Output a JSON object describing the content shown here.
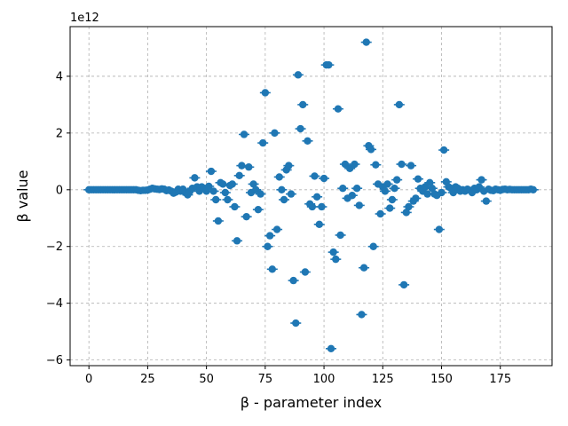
{
  "chart_data": {
    "type": "scatter",
    "title": "",
    "xlabel": "β - parameter index",
    "ylabel": "β value",
    "y_offset_label": "1e12",
    "xlim": [
      -8,
      197
    ],
    "ylim": [
      -6.2,
      5.75
    ],
    "x_ticks": [
      0,
      25,
      50,
      75,
      100,
      125,
      150,
      175
    ],
    "y_ticks": [
      -6,
      -4,
      -2,
      0,
      2,
      4
    ],
    "grid": true,
    "marker_color": "#1f77b4",
    "y_units_scale": 1000000000000.0,
    "points": [
      [
        0,
        0
      ],
      [
        1,
        0
      ],
      [
        2,
        0
      ],
      [
        3,
        0
      ],
      [
        4,
        0
      ],
      [
        5,
        0
      ],
      [
        6,
        0
      ],
      [
        7,
        0
      ],
      [
        8,
        0
      ],
      [
        9,
        0
      ],
      [
        10,
        0
      ],
      [
        11,
        0
      ],
      [
        12,
        0
      ],
      [
        13,
        0
      ],
      [
        14,
        0
      ],
      [
        15,
        0
      ],
      [
        16,
        0
      ],
      [
        17,
        0
      ],
      [
        18,
        0
      ],
      [
        19,
        0
      ],
      [
        20,
        0
      ],
      [
        21,
        -0.02
      ],
      [
        22,
        -0.03
      ],
      [
        23,
        -0.02
      ],
      [
        24,
        -0.02
      ],
      [
        25,
        -0.01
      ],
      [
        26,
        0.02
      ],
      [
        27,
        0.05
      ],
      [
        28,
        0.03
      ],
      [
        29,
        0.02
      ],
      [
        30,
        0.01
      ],
      [
        31,
        0.03
      ],
      [
        32,
        0.02
      ],
      [
        33,
        -0.03
      ],
      [
        34,
        -0.01
      ],
      [
        35,
        -0.05
      ],
      [
        36,
        -0.12
      ],
      [
        37,
        -0.08
      ],
      [
        38,
        0.02
      ],
      [
        39,
        -0.05
      ],
      [
        40,
        0.02
      ],
      [
        41,
        -0.1
      ],
      [
        42,
        -0.18
      ],
      [
        43,
        -0.05
      ],
      [
        44,
        0.05
      ],
      [
        45,
        0.42
      ],
      [
        46,
        0.1
      ],
      [
        47,
        -0.05
      ],
      [
        48,
        0.1
      ],
      [
        49,
        0.05
      ],
      [
        50,
        -0.05
      ],
      [
        51,
        0.12
      ],
      [
        52,
        0.65
      ],
      [
        53,
        -0.05
      ],
      [
        54,
        -0.35
      ],
      [
        55,
        -1.1
      ],
      [
        56,
        0.25
      ],
      [
        57,
        0.2
      ],
      [
        58,
        -0.1
      ],
      [
        59,
        -0.35
      ],
      [
        60,
        0.15
      ],
      [
        61,
        0.2
      ],
      [
        62,
        -0.6
      ],
      [
        63,
        -1.8
      ],
      [
        64,
        0.5
      ],
      [
        65,
        0.85
      ],
      [
        66,
        1.95
      ],
      [
        67,
        -0.95
      ],
      [
        68,
        0.8
      ],
      [
        69,
        -0.1
      ],
      [
        70,
        0.2
      ],
      [
        71,
        0
      ],
      [
        72,
        -0.7
      ],
      [
        73,
        -0.15
      ],
      [
        74,
        1.65
      ],
      [
        75,
        3.42
      ],
      [
        76,
        -2.0
      ],
      [
        77,
        -1.62
      ],
      [
        78,
        -2.8
      ],
      [
        79,
        2.0
      ],
      [
        80,
        -1.4
      ],
      [
        81,
        0.45
      ],
      [
        82,
        0
      ],
      [
        83,
        -0.35
      ],
      [
        84,
        0.7
      ],
      [
        85,
        0.85
      ],
      [
        86,
        -0.15
      ],
      [
        87,
        -3.2
      ],
      [
        88,
        -4.7
      ],
      [
        89,
        4.05
      ],
      [
        90,
        2.15
      ],
      [
        91,
        3.0
      ],
      [
        92,
        -2.9
      ],
      [
        93,
        1.72
      ],
      [
        94,
        -0.5
      ],
      [
        95,
        -0.6
      ],
      [
        96,
        0.48
      ],
      [
        97,
        -0.25
      ],
      [
        98,
        -1.22
      ],
      [
        99,
        -0.6
      ],
      [
        100,
        0.4
      ],
      [
        101,
        4.4
      ],
      [
        102,
        4.4
      ],
      [
        103,
        -5.6
      ],
      [
        104,
        -2.2
      ],
      [
        105,
        -2.45
      ],
      [
        106,
        2.85
      ],
      [
        107,
        -1.6
      ],
      [
        108,
        0.05
      ],
      [
        109,
        0.9
      ],
      [
        110,
        -0.3
      ],
      [
        111,
        0.75
      ],
      [
        112,
        -0.2
      ],
      [
        113,
        0.9
      ],
      [
        114,
        0.05
      ],
      [
        115,
        -0.55
      ],
      [
        116,
        -4.4
      ],
      [
        117,
        -2.75
      ],
      [
        118,
        5.2
      ],
      [
        119,
        1.55
      ],
      [
        120,
        1.42
      ],
      [
        121,
        -2.0
      ],
      [
        122,
        0.88
      ],
      [
        123,
        0.2
      ],
      [
        124,
        -0.85
      ],
      [
        125,
        0.1
      ],
      [
        126,
        -0.05
      ],
      [
        127,
        0.2
      ],
      [
        128,
        -0.65
      ],
      [
        129,
        -0.35
      ],
      [
        130,
        0.05
      ],
      [
        131,
        0.35
      ],
      [
        132,
        3.0
      ],
      [
        133,
        0.9
      ],
      [
        134,
        -3.35
      ],
      [
        135,
        -0.8
      ],
      [
        136,
        -0.6
      ],
      [
        137,
        0.85
      ],
      [
        138,
        -0.4
      ],
      [
        139,
        -0.3
      ],
      [
        140,
        0.38
      ],
      [
        141,
        0.05
      ],
      [
        142,
        -0.05
      ],
      [
        143,
        0.1
      ],
      [
        144,
        -0.15
      ],
      [
        145,
        0.25
      ],
      [
        146,
        0.05
      ],
      [
        147,
        -0.15
      ],
      [
        148,
        -0.2
      ],
      [
        149,
        -1.4
      ],
      [
        150,
        -0.1
      ],
      [
        151,
        1.4
      ],
      [
        152,
        0.28
      ],
      [
        153,
        0.1
      ],
      [
        154,
        0.05
      ],
      [
        155,
        -0.1
      ],
      [
        156,
        0.1
      ],
      [
        157,
        0.05
      ],
      [
        158,
        -0.05
      ],
      [
        159,
        0
      ],
      [
        160,
        -0.05
      ],
      [
        161,
        0.02
      ],
      [
        162,
        -0.02
      ],
      [
        163,
        -0.1
      ],
      [
        164,
        0.05
      ],
      [
        165,
        0
      ],
      [
        166,
        0.1
      ],
      [
        167,
        0.35
      ],
      [
        168,
        -0.05
      ],
      [
        169,
        -0.4
      ],
      [
        170,
        0.02
      ],
      [
        171,
        -0.02
      ],
      [
        172,
        -0.03
      ],
      [
        173,
        0.02
      ],
      [
        174,
        0
      ],
      [
        175,
        -0.02
      ],
      [
        176,
        0.01
      ],
      [
        177,
        0.02
      ],
      [
        178,
        0
      ],
      [
        179,
        0.01
      ],
      [
        180,
        0
      ],
      [
        181,
        0
      ],
      [
        182,
        0
      ],
      [
        183,
        0
      ],
      [
        184,
        0
      ],
      [
        185,
        0
      ],
      [
        186,
        0
      ],
      [
        187,
        0
      ],
      [
        188,
        0.02
      ],
      [
        189,
        0
      ]
    ]
  }
}
